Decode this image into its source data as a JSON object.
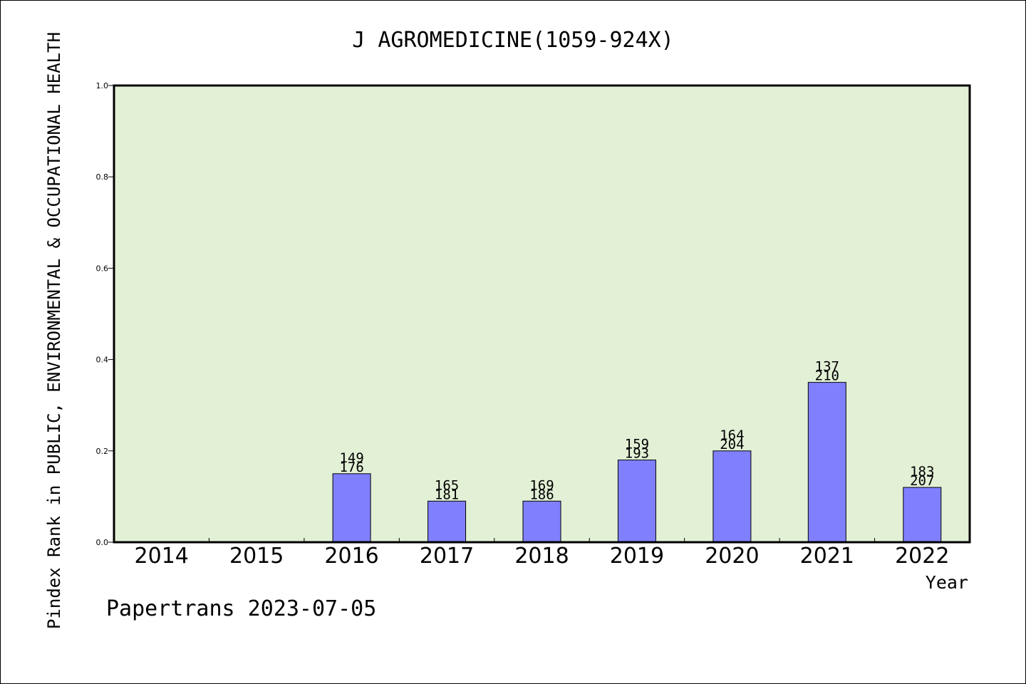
{
  "chart_data": {
    "type": "bar",
    "title": "J AGROMEDICINE(1059-924X)",
    "ylabel": "Pindex Rank in PUBLIC, ENVIRONMENTAL & OCCUPATIONAL HEALTH",
    "xlabel": "Year",
    "footer": "Papertrans 2023-07-05",
    "ylim": [
      0,
      1.0
    ],
    "yticks": [
      "0.0",
      "0.2",
      "0.4",
      "0.6",
      "0.8",
      "1.0"
    ],
    "categories": [
      "2014",
      "2015",
      "2016",
      "2017",
      "2018",
      "2019",
      "2020",
      "2021",
      "2022"
    ],
    "values": [
      null,
      null,
      0.15,
      0.09,
      0.09,
      0.18,
      0.2,
      0.35,
      0.12
    ],
    "rank": [
      null,
      null,
      "149",
      "165",
      "169",
      "159",
      "164",
      "137",
      "183"
    ],
    "total": [
      null,
      null,
      "176",
      "181",
      "186",
      "193",
      "204",
      "210",
      "207"
    ],
    "grid": false,
    "colors": {
      "bar": "#8080ff",
      "plot_bg": "#e2f0d6",
      "axis": "#000000"
    }
  }
}
